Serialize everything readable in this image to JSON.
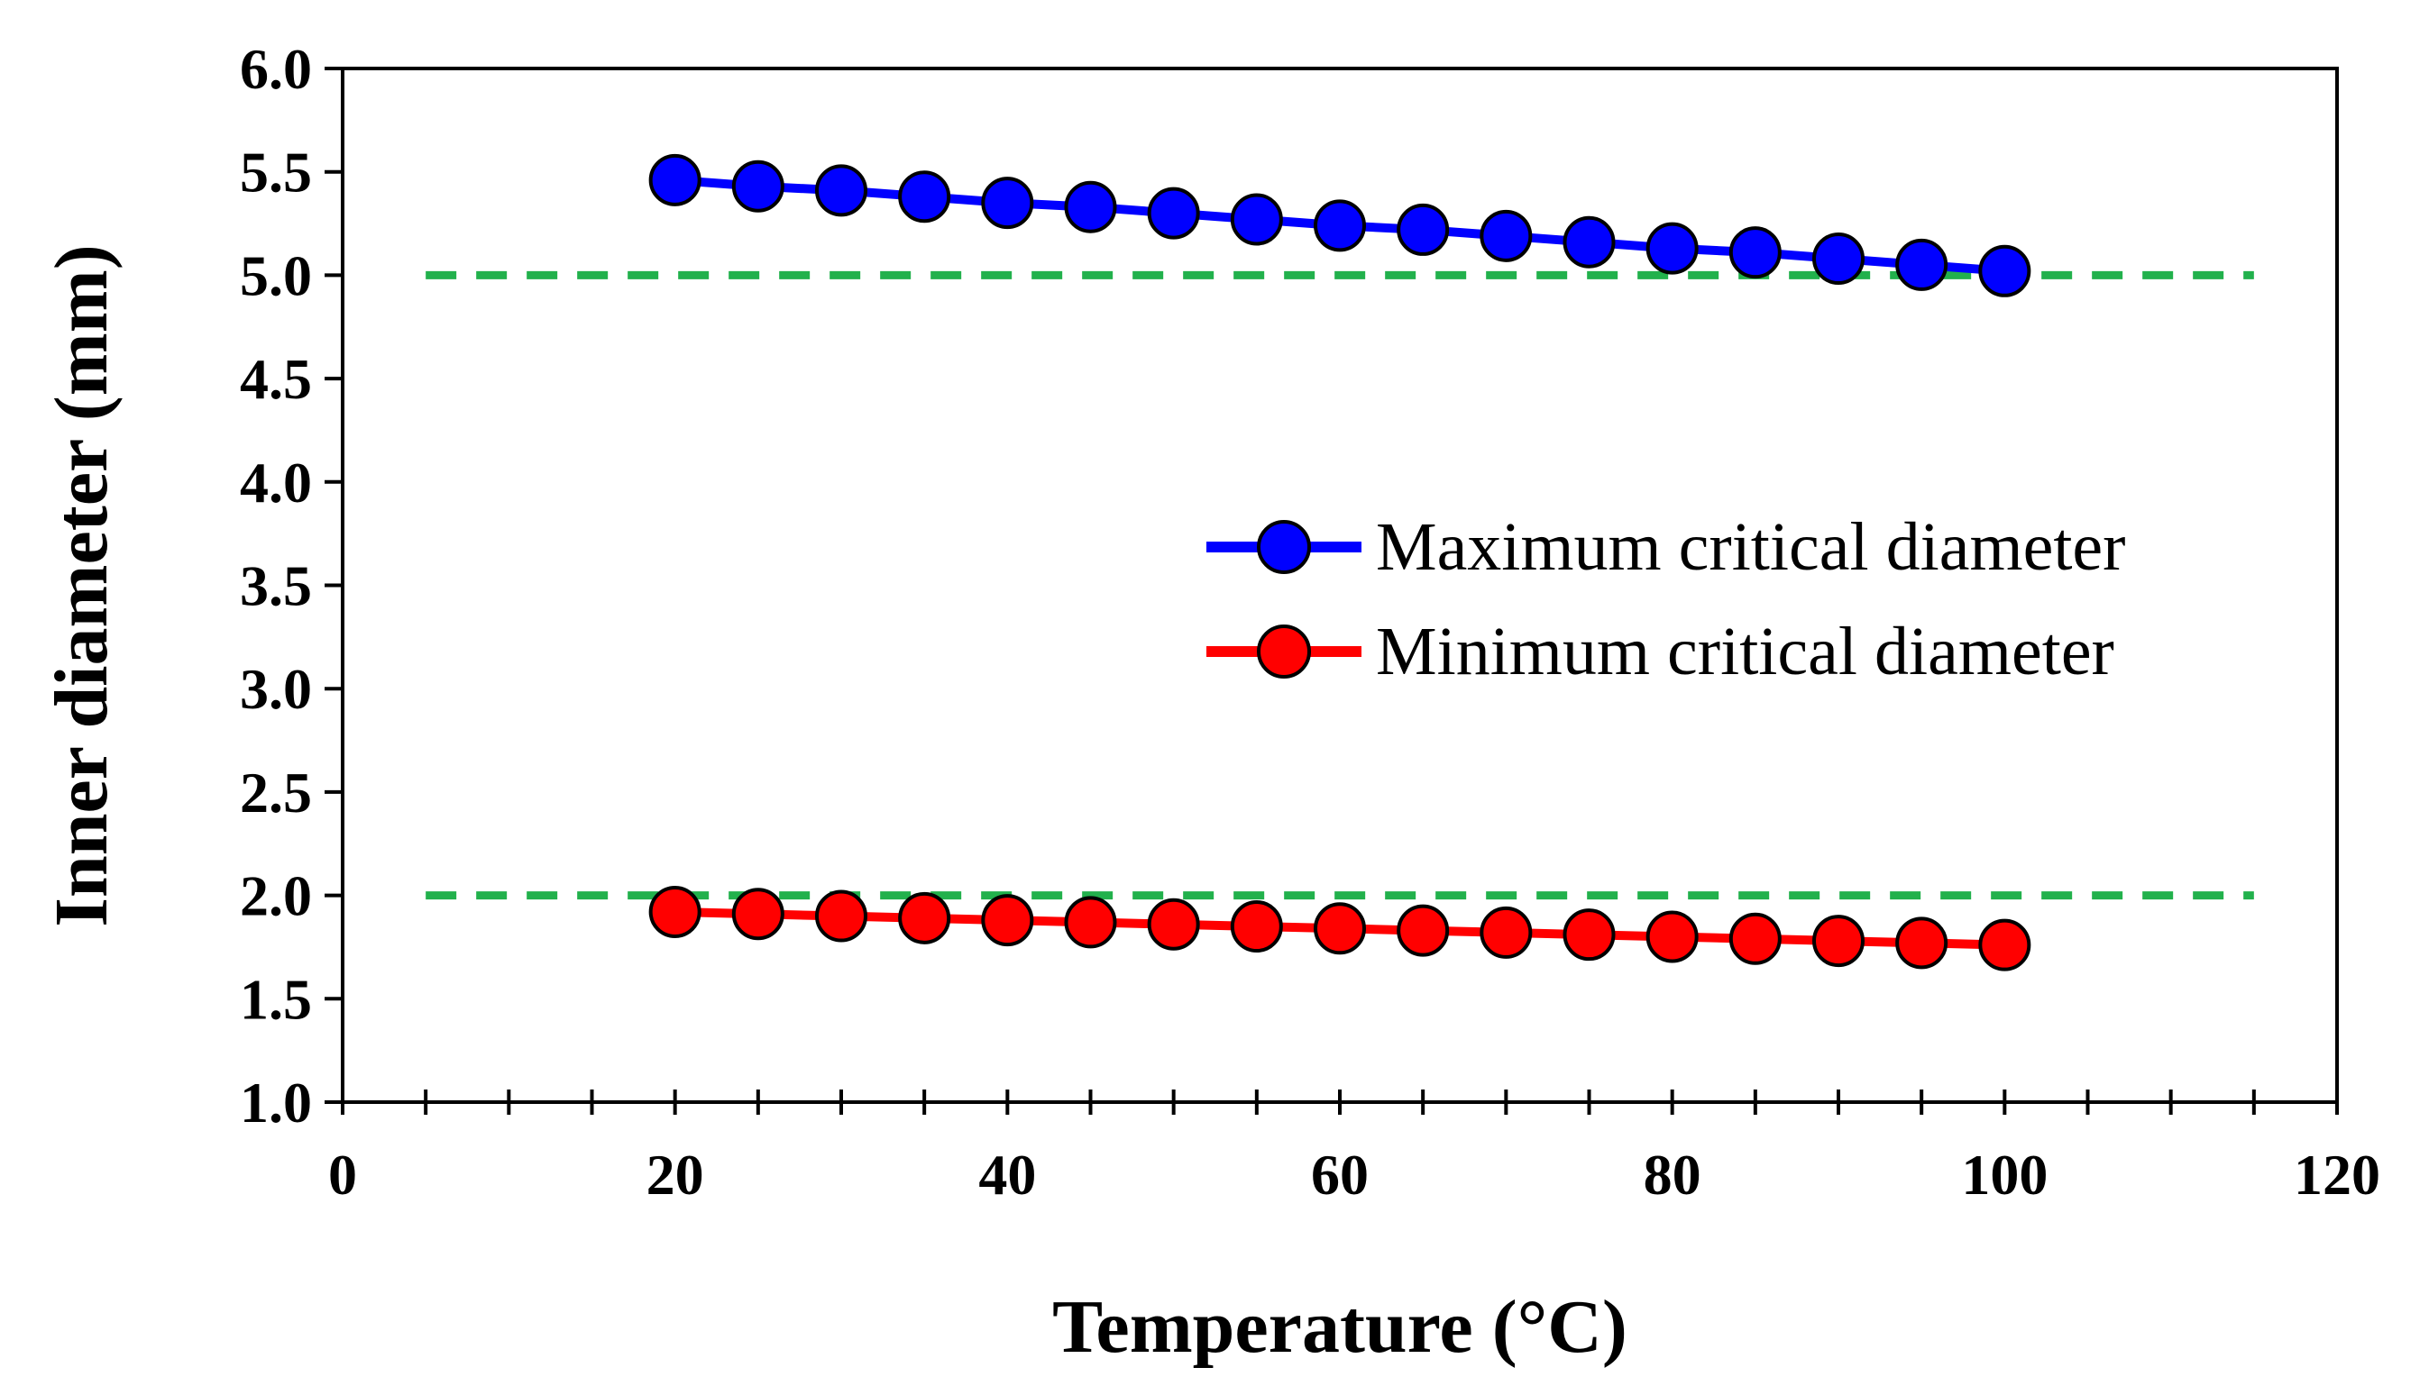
{
  "chart_data": {
    "type": "line",
    "title": "",
    "xlabel": "Temperature (°C)",
    "ylabel": "Inner diameter (mm)",
    "xlim": [
      0,
      120
    ],
    "ylim": [
      1.0,
      6.0
    ],
    "xticks": [
      "0",
      "20",
      "40",
      "60",
      "80",
      "100",
      "120"
    ],
    "xtick_values": [
      0,
      20,
      40,
      60,
      80,
      100,
      120
    ],
    "yticks": [
      "1.0",
      "1.5",
      "2.0",
      "2.5",
      "3.0",
      "3.5",
      "4.0",
      "4.5",
      "5.0",
      "5.5",
      "6.0"
    ],
    "ytick_values": [
      1.0,
      1.5,
      2.0,
      2.5,
      3.0,
      3.5,
      4.0,
      4.5,
      5.0,
      5.5,
      6.0
    ],
    "x_minor_step": 5,
    "grid": false,
    "legend_position": "center-right",
    "x": [
      20,
      25,
      30,
      35,
      40,
      45,
      50,
      55,
      60,
      65,
      70,
      75,
      80,
      85,
      90,
      95,
      100
    ],
    "series": [
      {
        "name": "Maximum critical diameter",
        "color": "#0000ff",
        "marker_color": "#0000ff",
        "values": [
          5.46,
          5.43,
          5.41,
          5.38,
          5.35,
          5.33,
          5.3,
          5.27,
          5.24,
          5.22,
          5.19,
          5.16,
          5.13,
          5.11,
          5.08,
          5.05,
          5.02
        ]
      },
      {
        "name": "Minimum critical diameter",
        "color": "#ff0000",
        "marker_color": "#ff0000",
        "values": [
          1.92,
          1.91,
          1.9,
          1.89,
          1.88,
          1.87,
          1.86,
          1.85,
          1.84,
          1.83,
          1.82,
          1.81,
          1.8,
          1.79,
          1.78,
          1.77,
          1.76
        ]
      }
    ],
    "reference_lines": [
      {
        "name": "upper-reference",
        "y": 5.0,
        "x_range": [
          5,
          115
        ],
        "color": "#22b14c",
        "style": "dashed"
      },
      {
        "name": "lower-reference",
        "y": 2.0,
        "x_range": [
          5,
          115
        ],
        "color": "#22b14c",
        "style": "dashed"
      }
    ]
  }
}
